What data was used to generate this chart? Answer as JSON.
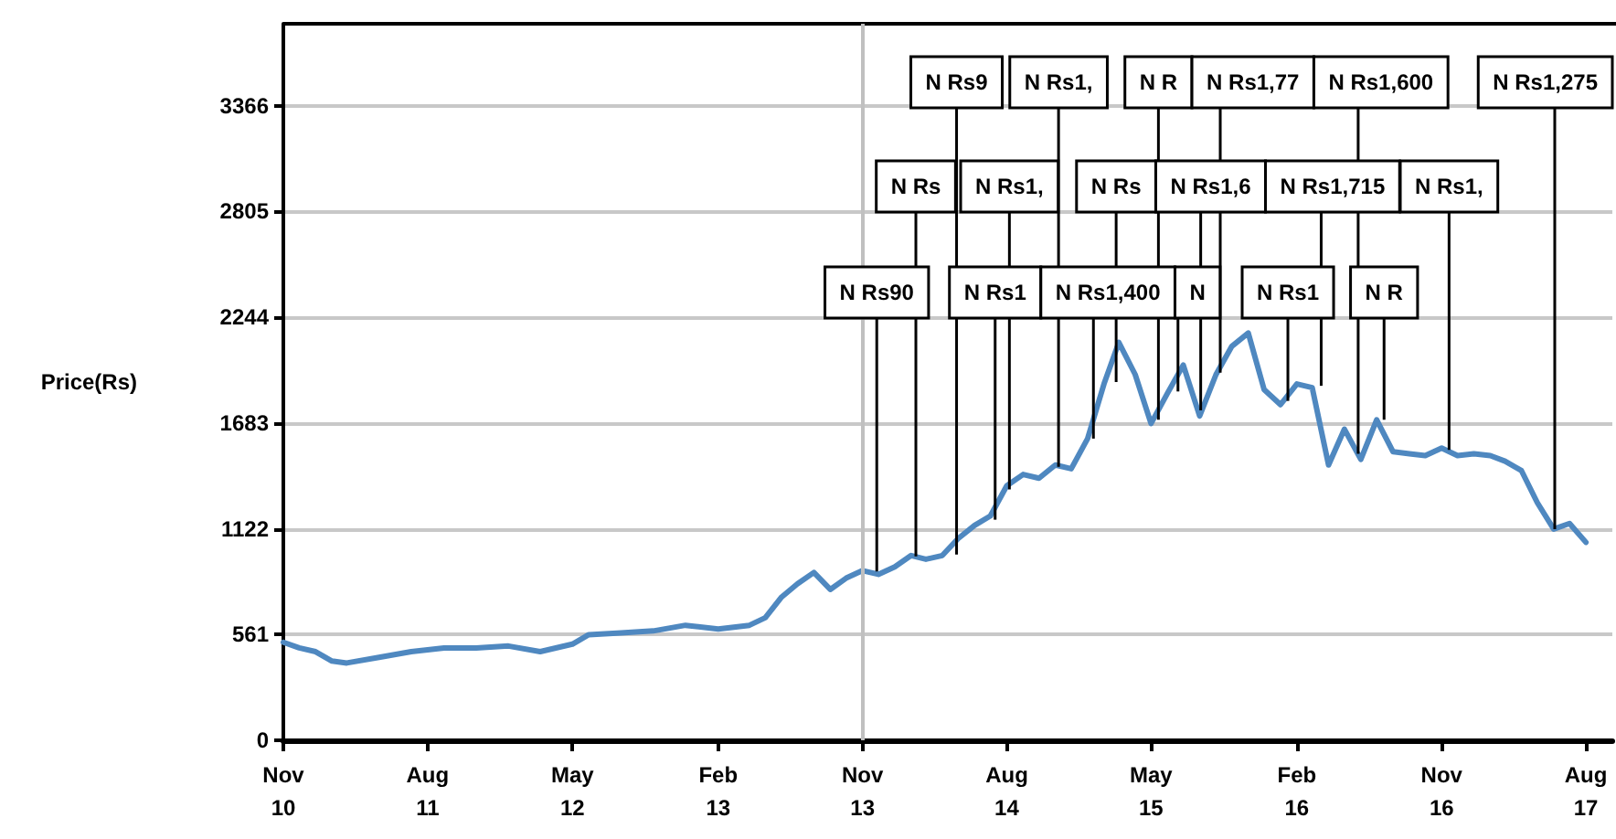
{
  "chart_data": {
    "type": "line",
    "ylabel": "Price(Rs)",
    "x": [
      "2010-11-01",
      "2010-12-01",
      "2011-01-01",
      "2011-02-01",
      "2011-03-01",
      "2011-05-01",
      "2011-07-01",
      "2011-09-01",
      "2011-11-01",
      "2012-01-01",
      "2012-03-01",
      "2012-05-01",
      "2012-06-01",
      "2012-08-01",
      "2012-10-01",
      "2012-12-01",
      "2013-02-01",
      "2013-04-01",
      "2013-05-01",
      "2013-06-01",
      "2013-07-01",
      "2013-08-01",
      "2013-09-01",
      "2013-10-01",
      "2013-11-01",
      "2013-12-01",
      "2014-01-01",
      "2014-02-01",
      "2014-03-01",
      "2014-04-01",
      "2014-05-01",
      "2014-06-01",
      "2014-07-01",
      "2014-08-01",
      "2014-09-01",
      "2014-10-01",
      "2014-11-01",
      "2014-12-01",
      "2015-01-01",
      "2015-02-01",
      "2015-03-01",
      "2015-04-01",
      "2015-05-01",
      "2015-06-01",
      "2015-07-01",
      "2015-08-01",
      "2015-09-01",
      "2015-10-01",
      "2015-11-01",
      "2015-12-01",
      "2016-01-01",
      "2016-02-01",
      "2016-03-01",
      "2016-04-01",
      "2016-05-01",
      "2016-06-01",
      "2016-07-01",
      "2016-08-01",
      "2016-09-01",
      "2016-10-01",
      "2016-11-01",
      "2016-12-01",
      "2017-01-01",
      "2017-02-01",
      "2017-03-01",
      "2017-04-01",
      "2017-05-01",
      "2017-06-01",
      "2017-07-01",
      "2017-08-01"
    ],
    "series": [
      {
        "color": "#4f88c0",
        "values": [
          520,
          490,
          470,
          420,
          410,
          440,
          470,
          490,
          490,
          500,
          470,
          510,
          560,
          570,
          580,
          610,
          590,
          610,
          650,
          760,
          830,
          890,
          800,
          860,
          900,
          880,
          920,
          980,
          960,
          980,
          1070,
          1140,
          1190,
          1350,
          1410,
          1390,
          1460,
          1440,
          1600,
          1890,
          2110,
          1940,
          1680,
          1840,
          1990,
          1720,
          1940,
          2090,
          2160,
          1860,
          1780,
          1890,
          1870,
          1460,
          1650,
          1490,
          1700,
          1530,
          1520,
          1510,
          1550,
          1510,
          1520,
          1510,
          1480,
          1430,
          1260,
          1120,
          1150,
          1050
        ]
      }
    ],
    "xlim": [
      "2010-11-01",
      "2017-09-20"
    ],
    "xticks": [
      {
        "value": "2010-11-01",
        "label": "Nov\n10"
      },
      {
        "value": "2011-08-01",
        "label": "Aug\n11"
      },
      {
        "value": "2012-05-01",
        "label": "May\n12"
      },
      {
        "value": "2013-02-01",
        "label": "Feb\n13"
      },
      {
        "value": "2013-11-01",
        "label": "Nov\n13"
      },
      {
        "value": "2014-08-01",
        "label": "Aug\n14"
      },
      {
        "value": "2015-05-01",
        "label": "May\n15"
      },
      {
        "value": "2016-02-01",
        "label": "Feb\n16"
      },
      {
        "value": "2016-11-01",
        "label": "Nov\n16"
      },
      {
        "value": "2017-08-01",
        "label": "Aug\n17"
      }
    ],
    "ylim": [
      0,
      3800
    ],
    "yticks": [
      0,
      561,
      1122,
      1683,
      2244,
      2805,
      3366
    ],
    "grid": "y",
    "marker": "none",
    "line_style": "solid",
    "ref_lines": [
      {
        "axis": "x",
        "value": "2013-11-01",
        "color": "#c0c0c0"
      }
    ],
    "annotations": [
      {
        "text": "N Rs90",
        "x": "2013-11-28",
        "y": 895
      },
      {
        "text": "N Rs",
        "x": "2014-02-10",
        "y": 975
      },
      {
        "text": "N Rs9",
        "x": "2014-04-28",
        "y": 985
      },
      {
        "text": "N Rs1",
        "x": "2014-07-10",
        "y": 1170
      },
      {
        "text": "N Rs1,",
        "x": "2014-08-06",
        "y": 1330
      },
      {
        "text": "N Rs1,",
        "x": "2014-11-07",
        "y": 1450
      },
      {
        "text": "N Rs1,400",
        "x": "2015-01-12",
        "y": 1600
      },
      {
        "text": "N Rs",
        "x": "2015-02-24",
        "y": 1900
      },
      {
        "text": "N R",
        "x": "2015-05-15",
        "y": 1700
      },
      {
        "text": "N",
        "x": "2015-06-21",
        "y": 1850
      },
      {
        "text": "N Rs1,6",
        "x": "2015-08-03",
        "y": 1750
      },
      {
        "text": "N Rs1,77",
        "x": "2015-09-09",
        "y": 1950
      },
      {
        "text": "N Rs1",
        "x": "2016-01-15",
        "y": 1800
      },
      {
        "text": "N Rs1,715",
        "x": "2016-03-18",
        "y": 1880
      },
      {
        "text": "N Rs1,600",
        "x": "2016-05-27",
        "y": 1520
      },
      {
        "text": "N R",
        "x": "2016-07-15",
        "y": 1700
      },
      {
        "text": "N Rs1,",
        "x": "2016-11-15",
        "y": 1540
      },
      {
        "text": "N Rs1,275",
        "x": "2017-06-03",
        "y": 1120
      }
    ]
  }
}
